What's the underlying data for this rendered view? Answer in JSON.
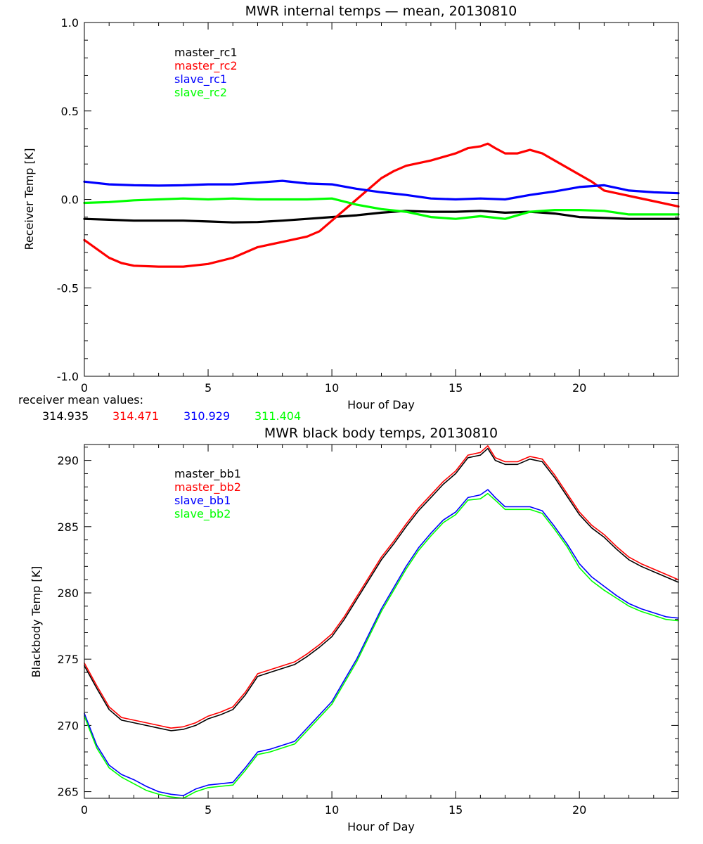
{
  "chart_data": [
    {
      "type": "line",
      "title": "MWR internal temps — mean, 20130810",
      "xlabel": "Hour of Day",
      "ylabel": "Receiver Temp [K]",
      "xlim": [
        0,
        24
      ],
      "ylim": [
        -1.0,
        1.0
      ],
      "x_ticks": [
        0,
        5,
        10,
        15,
        20
      ],
      "x_tick_labels": [
        "0",
        "5",
        "10",
        "15",
        "20"
      ],
      "y_ticks": [
        -1.0,
        -0.5,
        0.0,
        0.5,
        1.0
      ],
      "y_tick_labels": [
        "-1.0",
        "-0.5",
        "0.0",
        "0.5",
        "1.0"
      ],
      "grid": false,
      "legend_position": "top-left",
      "series": [
        {
          "name": "master_rc1",
          "color": "#000000",
          "x": [
            0,
            1,
            2,
            3,
            4,
            5,
            6,
            7,
            8,
            9,
            10,
            11,
            12,
            13,
            14,
            15,
            16,
            17,
            18,
            19,
            20,
            21,
            22,
            23,
            24
          ],
          "y": [
            -0.11,
            -0.115,
            -0.12,
            -0.12,
            -0.12,
            -0.125,
            -0.13,
            -0.128,
            -0.12,
            -0.11,
            -0.1,
            -0.09,
            -0.075,
            -0.065,
            -0.07,
            -0.07,
            -0.065,
            -0.075,
            -0.07,
            -0.08,
            -0.1,
            -0.105,
            -0.11,
            -0.11,
            -0.11
          ]
        },
        {
          "name": "master_rc2",
          "color": "#ff0000",
          "x": [
            0,
            0.5,
            1,
            1.5,
            2,
            3,
            4,
            5,
            6,
            7,
            8,
            9,
            9.5,
            10,
            10.5,
            11,
            11.5,
            12,
            12.5,
            13,
            14,
            15,
            15.5,
            16,
            16.3,
            16.6,
            17,
            17.5,
            18,
            18.5,
            19,
            20,
            20.5,
            21,
            22,
            23,
            24
          ],
          "y": [
            -0.23,
            -0.28,
            -0.33,
            -0.36,
            -0.375,
            -0.38,
            -0.38,
            -0.365,
            -0.33,
            -0.27,
            -0.24,
            -0.21,
            -0.18,
            -0.12,
            -0.06,
            0.0,
            0.06,
            0.12,
            0.16,
            0.19,
            0.22,
            0.26,
            0.29,
            0.3,
            0.315,
            0.29,
            0.26,
            0.26,
            0.28,
            0.26,
            0.22,
            0.14,
            0.1,
            0.05,
            0.02,
            -0.01,
            -0.04
          ]
        },
        {
          "name": "slave_rc1",
          "color": "#0000ff",
          "x": [
            0,
            1,
            2,
            3,
            4,
            5,
            6,
            7,
            8,
            9,
            10,
            11,
            12,
            13,
            14,
            15,
            16,
            17,
            18,
            19,
            20,
            21,
            22,
            23,
            24
          ],
          "y": [
            0.1,
            0.085,
            0.08,
            0.078,
            0.08,
            0.085,
            0.085,
            0.095,
            0.105,
            0.09,
            0.085,
            0.06,
            0.04,
            0.025,
            0.005,
            0.0,
            0.005,
            0.0,
            0.025,
            0.045,
            0.07,
            0.08,
            0.05,
            0.04,
            0.035
          ]
        },
        {
          "name": "slave_rc2",
          "color": "#00ff00",
          "x": [
            0,
            1,
            2,
            3,
            4,
            5,
            6,
            7,
            8,
            9,
            10,
            11,
            12,
            13,
            14,
            15,
            16,
            17,
            18,
            19,
            20,
            21,
            22,
            23,
            24
          ],
          "y": [
            -0.02,
            -0.015,
            -0.005,
            0.0,
            0.005,
            0.0,
            0.005,
            0.0,
            0.0,
            0.0,
            0.005,
            -0.03,
            -0.055,
            -0.07,
            -0.1,
            -0.11,
            -0.095,
            -0.11,
            -0.07,
            -0.06,
            -0.06,
            -0.065,
            -0.085,
            -0.085,
            -0.085
          ]
        }
      ],
      "mean_label": "receiver mean values:",
      "mean_values": [
        {
          "value": "314.935",
          "color": "#000000"
        },
        {
          "value": "314.471",
          "color": "#ff0000"
        },
        {
          "value": "310.929",
          "color": "#0000ff"
        },
        {
          "value": "311.404",
          "color": "#00ff00"
        }
      ]
    },
    {
      "type": "line",
      "title": "MWR black body temps, 20130810",
      "xlabel": "Hour of Day",
      "ylabel": "Blackbody Temp [K]",
      "xlim": [
        0,
        24
      ],
      "ylim": [
        264.5,
        291.2
      ],
      "x_ticks": [
        0,
        5,
        10,
        15,
        20
      ],
      "x_tick_labels": [
        "0",
        "5",
        "10",
        "15",
        "20"
      ],
      "y_ticks": [
        265,
        270,
        275,
        280,
        285,
        290
      ],
      "y_tick_labels": [
        "265",
        "270",
        "275",
        "280",
        "285",
        "290"
      ],
      "grid": false,
      "legend_position": "top-left",
      "series": [
        {
          "name": "master_bb1",
          "color": "#000000",
          "x": [
            0,
            0.5,
            1,
            1.5,
            2,
            2.5,
            3,
            3.5,
            4,
            4.5,
            5,
            5.5,
            6,
            6.5,
            7,
            7.5,
            8,
            8.5,
            9,
            9.5,
            10,
            10.5,
            11,
            11.5,
            12,
            12.5,
            13,
            13.5,
            14,
            14.5,
            15,
            15.5,
            16,
            16.3,
            16.6,
            17,
            17.5,
            18,
            18.5,
            19,
            19.5,
            20,
            20.5,
            21,
            21.5,
            22,
            22.5,
            23,
            23.5,
            24
          ],
          "y": [
            274.5,
            272.8,
            271.2,
            270.4,
            270.2,
            270.0,
            269.8,
            269.6,
            269.7,
            270.0,
            270.5,
            270.8,
            271.2,
            272.3,
            273.7,
            274.0,
            274.3,
            274.6,
            275.2,
            275.9,
            276.7,
            278.0,
            279.5,
            281.0,
            282.5,
            283.7,
            285.0,
            286.2,
            287.2,
            288.2,
            289.0,
            290.2,
            290.4,
            290.9,
            290.0,
            289.7,
            289.7,
            290.1,
            289.9,
            288.7,
            287.3,
            285.9,
            284.9,
            284.2,
            283.3,
            282.5,
            282.0,
            281.6,
            281.2,
            280.8
          ]
        },
        {
          "name": "master_bb2",
          "color": "#ff0000",
          "x": [
            0,
            0.5,
            1,
            1.5,
            2,
            2.5,
            3,
            3.5,
            4,
            4.5,
            5,
            5.5,
            6,
            6.5,
            7,
            7.5,
            8,
            8.5,
            9,
            9.5,
            10,
            10.5,
            11,
            11.5,
            12,
            12.5,
            13,
            13.5,
            14,
            14.5,
            15,
            15.5,
            16,
            16.3,
            16.6,
            17,
            17.5,
            18,
            18.5,
            19,
            19.5,
            20,
            20.5,
            21,
            21.5,
            22,
            22.5,
            23,
            23.5,
            24
          ],
          "y": [
            274.7,
            273.0,
            271.4,
            270.6,
            270.4,
            270.2,
            270.0,
            269.8,
            269.9,
            270.2,
            270.7,
            271.0,
            271.4,
            272.5,
            273.9,
            274.2,
            274.5,
            274.8,
            275.4,
            276.1,
            276.9,
            278.2,
            279.7,
            281.2,
            282.7,
            283.9,
            285.2,
            286.4,
            287.4,
            288.4,
            289.2,
            290.4,
            290.6,
            291.1,
            290.2,
            289.9,
            289.9,
            290.3,
            290.1,
            288.9,
            287.5,
            286.1,
            285.1,
            284.4,
            283.5,
            282.7,
            282.2,
            281.8,
            281.4,
            281.0
          ]
        },
        {
          "name": "slave_bb1",
          "color": "#0000ff",
          "x": [
            0,
            0.5,
            1,
            1.5,
            2,
            2.5,
            3,
            3.5,
            4,
            4.5,
            5,
            5.5,
            6,
            6.5,
            7,
            7.5,
            8,
            8.5,
            9,
            9.5,
            10,
            10.5,
            11,
            11.5,
            12,
            12.5,
            13,
            13.5,
            14,
            14.5,
            15,
            15.5,
            16,
            16.3,
            16.6,
            17,
            17.5,
            18,
            18.5,
            19,
            19.5,
            20,
            20.5,
            21,
            21.5,
            22,
            22.5,
            23,
            23.5,
            24
          ],
          "y": [
            270.9,
            268.5,
            267.0,
            266.3,
            265.9,
            265.4,
            265.0,
            264.8,
            264.7,
            265.2,
            265.5,
            265.6,
            265.7,
            266.8,
            268.0,
            268.2,
            268.5,
            268.8,
            269.8,
            270.8,
            271.8,
            273.4,
            275.0,
            276.9,
            278.8,
            280.4,
            282.0,
            283.4,
            284.5,
            285.5,
            286.1,
            287.2,
            287.4,
            287.8,
            287.2,
            286.5,
            286.5,
            286.5,
            286.2,
            285.0,
            283.7,
            282.2,
            281.2,
            280.5,
            279.8,
            279.2,
            278.8,
            278.5,
            278.2,
            278.1
          ]
        },
        {
          "name": "slave_bb2",
          "color": "#00ff00",
          "x": [
            0,
            0.5,
            1,
            1.5,
            2,
            2.5,
            3,
            3.5,
            4,
            4.5,
            5,
            5.5,
            6,
            6.5,
            7,
            7.5,
            8,
            8.5,
            9,
            9.5,
            10,
            10.5,
            11,
            11.5,
            12,
            12.5,
            13,
            13.5,
            14,
            14.5,
            15,
            15.5,
            16,
            16.3,
            16.6,
            17,
            17.5,
            18,
            18.5,
            19,
            19.5,
            20,
            20.5,
            21,
            21.5,
            22,
            22.5,
            23,
            23.5,
            24
          ],
          "y": [
            270.7,
            268.3,
            266.8,
            266.1,
            265.6,
            265.1,
            264.8,
            264.6,
            264.5,
            265.0,
            265.3,
            265.4,
            265.5,
            266.6,
            267.8,
            268.0,
            268.3,
            268.6,
            269.6,
            270.6,
            271.6,
            273.2,
            274.8,
            276.7,
            278.6,
            280.2,
            281.8,
            283.2,
            284.3,
            285.3,
            285.9,
            287.0,
            287.1,
            287.5,
            287.0,
            286.3,
            286.3,
            286.3,
            286.0,
            284.8,
            283.5,
            281.9,
            280.9,
            280.2,
            279.6,
            279.0,
            278.6,
            278.3,
            278.0,
            277.9
          ]
        }
      ]
    }
  ]
}
